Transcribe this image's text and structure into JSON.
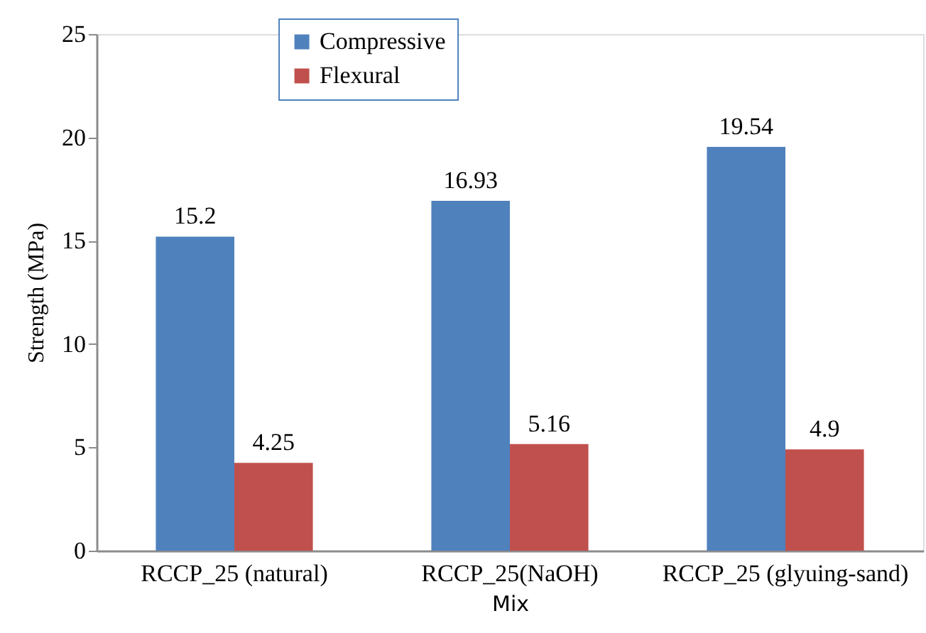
{
  "chart_data": {
    "type": "bar",
    "categories": [
      "RCCP_25 (natural)",
      "RCCP_25(NaOH)",
      "RCCP_25 (glyuing-sand)"
    ],
    "series": [
      {
        "name": "Compressive",
        "color": "#4f81bd",
        "values": [
          15.2,
          16.93,
          19.54
        ]
      },
      {
        "name": "Flexural",
        "color": "#c0504d",
        "values": [
          4.25,
          5.16,
          4.9
        ]
      }
    ],
    "xlabel": "Mix",
    "ylabel": "Strength (MPa)",
    "ylim": [
      0,
      25
    ],
    "yticks": [
      0,
      5,
      10,
      15,
      20,
      25
    ],
    "data_labels": true,
    "legend": "top"
  }
}
